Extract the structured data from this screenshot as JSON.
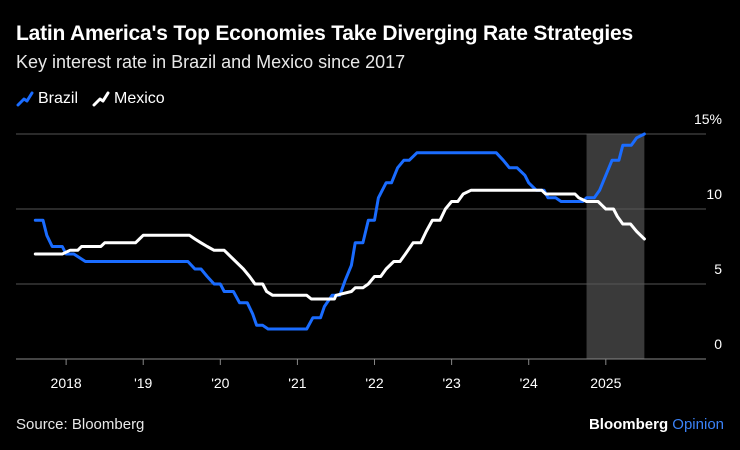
{
  "title": "Latin America's Top Economies Take Diverging Rate Strategies",
  "subtitle": "Key interest rate in Brazil and Mexico since 2017",
  "source": "Source: Bloomberg",
  "brand": {
    "name": "Bloomberg",
    "suffix": "Opinion"
  },
  "colors": {
    "brazil": "#1a6cff",
    "mexico": "#ffffff",
    "grid": "#555555",
    "shade": "#3a3a3a"
  },
  "chart_data": {
    "type": "line",
    "title": "Latin America's Top Economies Take Diverging Rate Strategies",
    "subtitle": "Key interest rate in Brazil and Mexico since 2017",
    "ylim": [
      0,
      15
    ],
    "xlim": [
      2017.35,
      2026.1
    ],
    "yticks": [
      0,
      5,
      10,
      15
    ],
    "ytick_labels": [
      "0",
      "5",
      "10",
      "15%"
    ],
    "xticks": [
      2018,
      2019,
      2020,
      2021,
      2022,
      2023,
      2024,
      2025
    ],
    "xtick_labels": [
      "2018",
      "'19",
      "'20",
      "'21",
      "'22",
      "'23",
      "'24",
      "2025"
    ],
    "shaded_region": [
      2024.75,
      2025.5
    ],
    "legend_position": "top-left",
    "series": [
      {
        "name": "Brazil",
        "color": "#1a6cff",
        "points": [
          [
            2017.6,
            9.25
          ],
          [
            2017.7,
            9.25
          ],
          [
            2017.75,
            8.25
          ],
          [
            2017.82,
            7.5
          ],
          [
            2017.95,
            7.5
          ],
          [
            2018.0,
            7.0
          ],
          [
            2018.1,
            7.0
          ],
          [
            2018.25,
            6.5
          ],
          [
            2019.58,
            6.5
          ],
          [
            2019.67,
            6.0
          ],
          [
            2019.75,
            6.0
          ],
          [
            2019.83,
            5.5
          ],
          [
            2019.92,
            5.0
          ],
          [
            2020.0,
            5.0
          ],
          [
            2020.05,
            4.5
          ],
          [
            2020.17,
            4.5
          ],
          [
            2020.25,
            3.75
          ],
          [
            2020.35,
            3.75
          ],
          [
            2020.42,
            3.0
          ],
          [
            2020.47,
            2.25
          ],
          [
            2020.55,
            2.25
          ],
          [
            2020.62,
            2.0
          ],
          [
            2021.12,
            2.0
          ],
          [
            2021.2,
            2.75
          ],
          [
            2021.3,
            2.75
          ],
          [
            2021.35,
            3.5
          ],
          [
            2021.45,
            4.25
          ],
          [
            2021.55,
            4.25
          ],
          [
            2021.62,
            5.25
          ],
          [
            2021.7,
            6.25
          ],
          [
            2021.75,
            7.75
          ],
          [
            2021.85,
            7.75
          ],
          [
            2021.92,
            9.25
          ],
          [
            2022.0,
            9.25
          ],
          [
            2022.05,
            10.75
          ],
          [
            2022.15,
            11.75
          ],
          [
            2022.22,
            11.75
          ],
          [
            2022.3,
            12.75
          ],
          [
            2022.38,
            13.25
          ],
          [
            2022.45,
            13.25
          ],
          [
            2022.55,
            13.75
          ],
          [
            2023.58,
            13.75
          ],
          [
            2023.67,
            13.25
          ],
          [
            2023.75,
            12.75
          ],
          [
            2023.85,
            12.75
          ],
          [
            2023.95,
            12.25
          ],
          [
            2024.0,
            11.75
          ],
          [
            2024.1,
            11.25
          ],
          [
            2024.2,
            11.25
          ],
          [
            2024.25,
            10.75
          ],
          [
            2024.35,
            10.75
          ],
          [
            2024.42,
            10.5
          ],
          [
            2024.7,
            10.5
          ],
          [
            2024.75,
            10.75
          ],
          [
            2024.85,
            10.75
          ],
          [
            2024.92,
            11.25
          ],
          [
            2025.0,
            12.25
          ],
          [
            2025.08,
            13.25
          ],
          [
            2025.17,
            13.25
          ],
          [
            2025.22,
            14.25
          ],
          [
            2025.33,
            14.25
          ],
          [
            2025.4,
            14.75
          ],
          [
            2025.5,
            15.0
          ]
        ]
      },
      {
        "name": "Mexico",
        "color": "#ffffff",
        "points": [
          [
            2017.6,
            7.0
          ],
          [
            2017.95,
            7.0
          ],
          [
            2018.05,
            7.25
          ],
          [
            2018.15,
            7.25
          ],
          [
            2018.2,
            7.5
          ],
          [
            2018.45,
            7.5
          ],
          [
            2018.5,
            7.75
          ],
          [
            2018.9,
            7.75
          ],
          [
            2018.95,
            8.0
          ],
          [
            2019.0,
            8.25
          ],
          [
            2019.6,
            8.25
          ],
          [
            2019.67,
            8.0
          ],
          [
            2019.75,
            7.75
          ],
          [
            2019.83,
            7.5
          ],
          [
            2019.92,
            7.25
          ],
          [
            2020.05,
            7.25
          ],
          [
            2020.1,
            7.0
          ],
          [
            2020.2,
            6.5
          ],
          [
            2020.3,
            6.0
          ],
          [
            2020.38,
            5.5
          ],
          [
            2020.45,
            5.0
          ],
          [
            2020.55,
            5.0
          ],
          [
            2020.6,
            4.5
          ],
          [
            2020.68,
            4.25
          ],
          [
            2021.12,
            4.25
          ],
          [
            2021.18,
            4.0
          ],
          [
            2021.48,
            4.0
          ],
          [
            2021.5,
            4.25
          ],
          [
            2021.7,
            4.5
          ],
          [
            2021.75,
            4.75
          ],
          [
            2021.85,
            4.75
          ],
          [
            2021.92,
            5.0
          ],
          [
            2022.0,
            5.5
          ],
          [
            2022.08,
            5.5
          ],
          [
            2022.15,
            6.0
          ],
          [
            2022.25,
            6.5
          ],
          [
            2022.33,
            6.5
          ],
          [
            2022.4,
            7.0
          ],
          [
            2022.5,
            7.75
          ],
          [
            2022.6,
            7.75
          ],
          [
            2022.67,
            8.5
          ],
          [
            2022.75,
            9.25
          ],
          [
            2022.85,
            9.25
          ],
          [
            2022.92,
            10.0
          ],
          [
            2023.0,
            10.5
          ],
          [
            2023.08,
            10.5
          ],
          [
            2023.15,
            11.0
          ],
          [
            2023.25,
            11.25
          ],
          [
            2024.17,
            11.25
          ],
          [
            2024.22,
            11.0
          ],
          [
            2024.6,
            11.0
          ],
          [
            2024.65,
            10.75
          ],
          [
            2024.75,
            10.5
          ],
          [
            2024.9,
            10.5
          ],
          [
            2024.95,
            10.25
          ],
          [
            2025.0,
            10.0
          ],
          [
            2025.1,
            10.0
          ],
          [
            2025.15,
            9.5
          ],
          [
            2025.22,
            9.0
          ],
          [
            2025.32,
            9.0
          ],
          [
            2025.4,
            8.5
          ],
          [
            2025.5,
            8.0
          ]
        ]
      }
    ]
  }
}
